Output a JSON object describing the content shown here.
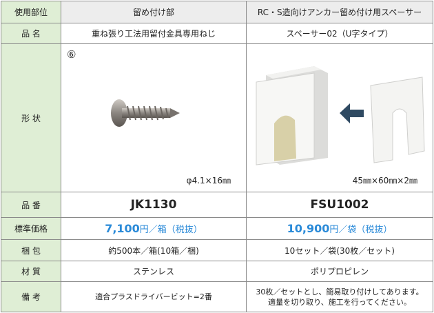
{
  "table": {
    "columns": [
      "使用部位",
      "留め付け部",
      "RC・S造向けアンカー留め付け用スペーサー"
    ],
    "rows": [
      {
        "label": "品 名",
        "cells": [
          "重ね張り工法用留付金具専用ねじ",
          "スペーサー02（U字タイプ）"
        ]
      },
      {
        "label": "形 状",
        "cells": [
          {
            "badge": "⑥",
            "caption": "φ4.1×16㎜"
          },
          {
            "caption": "45㎜×60㎜×2㎜"
          }
        ]
      },
      {
        "label": "品 番",
        "cells": [
          "JK1130",
          "FSU1002"
        ]
      },
      {
        "label": "標準価格",
        "cells": [
          {
            "price": "7,100",
            "unit": "円／箱（税抜）"
          },
          {
            "price": "10,900",
            "unit": "円／袋（税抜）"
          }
        ]
      },
      {
        "label": "梱 包",
        "cells": [
          "約500本／箱(10箱／梱)",
          "10セット／袋(30枚／セット)"
        ]
      },
      {
        "label": "材 質",
        "cells": [
          "ステンレス",
          "ポリプロピレン"
        ]
      },
      {
        "label": "備 考",
        "cells": [
          [
            "適合プラスドライバービット=2番"
          ],
          [
            "30枚／セットとし、簡易取り付けしてあります。",
            "適量を切り取り、施工を行ってください。"
          ]
        ]
      }
    ]
  }
}
